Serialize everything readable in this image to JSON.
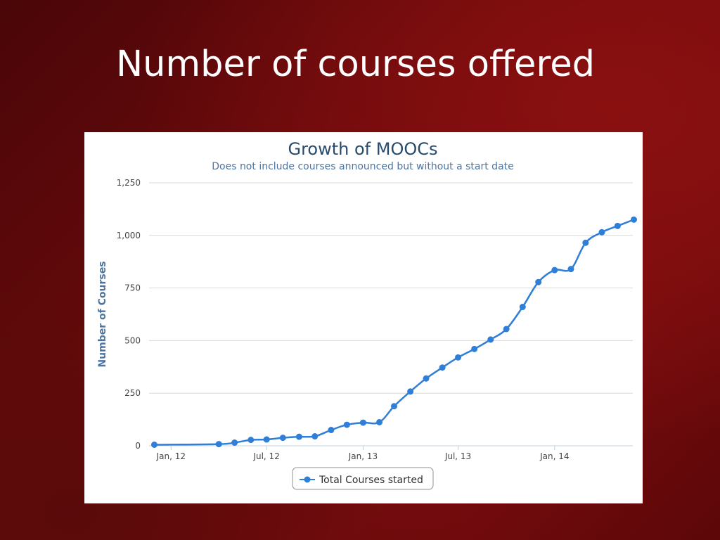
{
  "slide": {
    "title": "Number of courses offered"
  },
  "chart_data": {
    "type": "line",
    "title": "Growth of MOOCs",
    "subtitle": "Does not include courses announced but without a start date",
    "ylabel": "Number of Courses",
    "xlabel": "",
    "ylim": [
      0,
      1250
    ],
    "yticks": [
      0,
      250,
      500,
      750,
      1000,
      1250
    ],
    "ytick_labels": [
      "0",
      "250",
      "500",
      "750",
      "1,000",
      "1,250"
    ],
    "xlim": [
      "2011-11-20",
      "2014-05-30"
    ],
    "xticks": [
      "2012-01-01",
      "2012-07-01",
      "2013-01-01",
      "2013-07-01",
      "2014-01-01"
    ],
    "xtick_labels": [
      "Jan, 12",
      "Jul, 12",
      "Jan, 13",
      "Jul, 13",
      "Jan, 14"
    ],
    "grid": true,
    "legend_position": "bottom-center",
    "color": "#2f7ed8",
    "series": [
      {
        "name": "Total Courses started",
        "points": [
          [
            "2011-11-30",
            5
          ],
          [
            "2012-04-01",
            8
          ],
          [
            "2012-05-01",
            15
          ],
          [
            "2012-06-01",
            28
          ],
          [
            "2012-07-01",
            30
          ],
          [
            "2012-08-01",
            38
          ],
          [
            "2012-09-01",
            43
          ],
          [
            "2012-10-01",
            45
          ],
          [
            "2012-11-01",
            75
          ],
          [
            "2012-12-01",
            100
          ],
          [
            "2013-01-01",
            110
          ],
          [
            "2013-02-01",
            112
          ],
          [
            "2013-03-01",
            188
          ],
          [
            "2013-04-01",
            258
          ],
          [
            "2013-05-01",
            320
          ],
          [
            "2013-06-01",
            372
          ],
          [
            "2013-07-01",
            420
          ],
          [
            "2013-08-01",
            460
          ],
          [
            "2013-09-01",
            505
          ],
          [
            "2013-10-01",
            555
          ],
          [
            "2013-11-01",
            660
          ],
          [
            "2013-12-01",
            778
          ],
          [
            "2014-01-01",
            835
          ],
          [
            "2014-02-01",
            840
          ],
          [
            "2014-03-01",
            965
          ],
          [
            "2014-04-01",
            1015
          ],
          [
            "2014-05-01",
            1045
          ],
          [
            "2014-06-01",
            1075
          ]
        ]
      }
    ]
  }
}
